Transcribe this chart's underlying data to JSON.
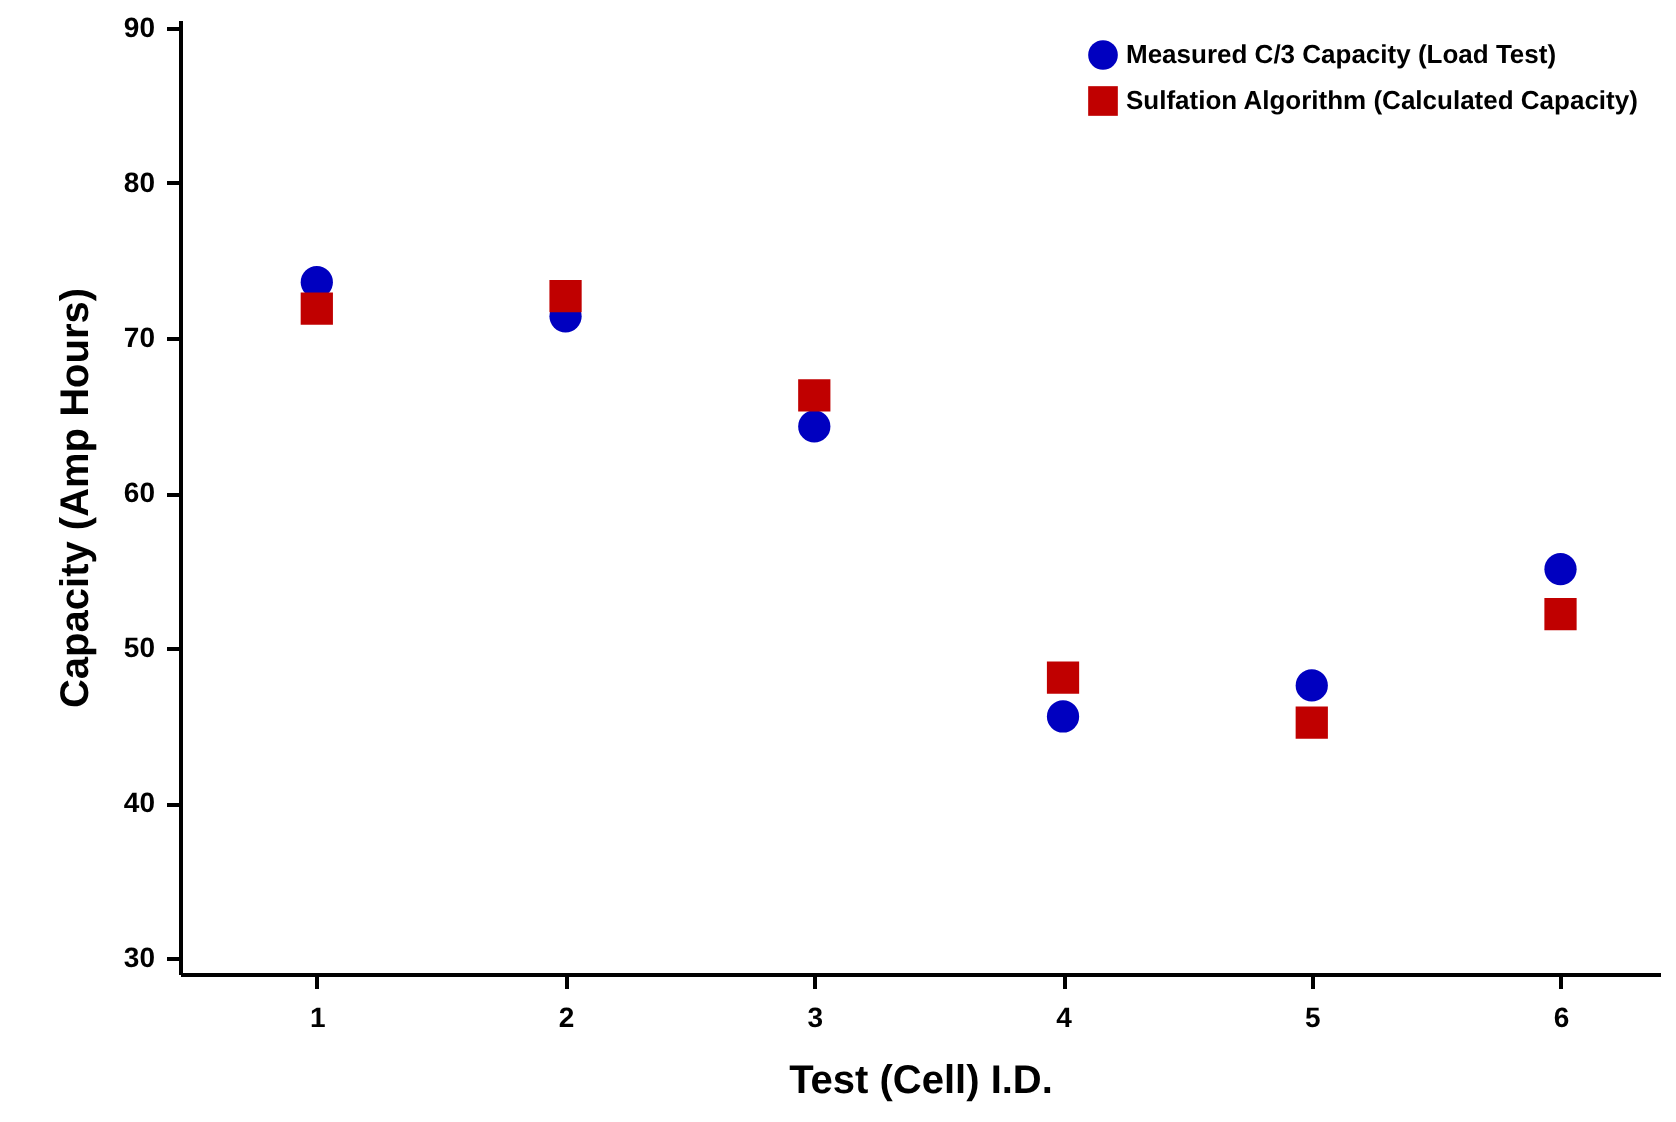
{
  "chart_data": {
    "type": "scatter",
    "xlabel": "Test (Cell) I.D.",
    "ylabel": "Capacity (Amp Hours)",
    "x": [
      1,
      2,
      3,
      4,
      5,
      6
    ],
    "series": [
      {
        "name": "Measured C/3 Capacity (Load Test)",
        "color": "#0000c0",
        "marker": "circle",
        "values": [
          73.6,
          71.4,
          64.3,
          45.6,
          47.6,
          55.1
        ]
      },
      {
        "name": "Sulfation Algorithm (Calculated Capacity)",
        "color": "#c00000",
        "marker": "square",
        "values": [
          71.9,
          72.7,
          66.3,
          48.1,
          45.2,
          52.2
        ]
      }
    ],
    "xlim": [
      0.45,
      6.4
    ],
    "xticks": [
      1,
      2,
      3,
      4,
      5,
      6
    ],
    "ylim": [
      29,
      90.5
    ],
    "yticks": [
      30,
      40,
      50,
      60,
      70,
      80,
      90
    ],
    "grid": false,
    "legend": "top right"
  }
}
